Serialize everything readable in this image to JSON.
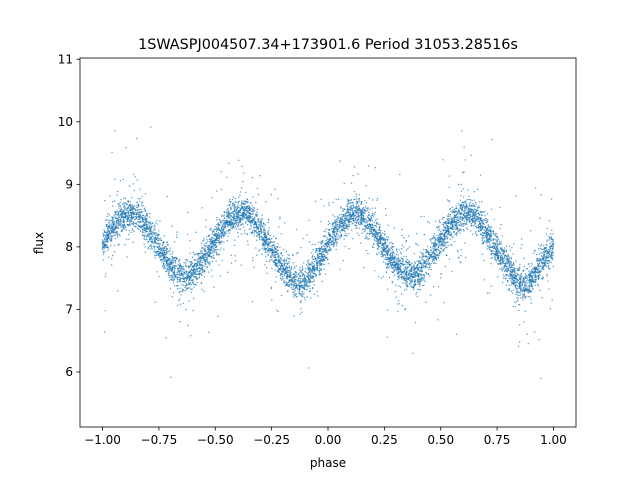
{
  "chart_data": {
    "type": "scatter",
    "title": "1SWASPJ004507.34+173901.6 Period 31053.28516s",
    "xlabel": "phase",
    "ylabel": "flux",
    "xlim": [
      -1.1,
      1.1
    ],
    "ylim": [
      5.12,
      11.02
    ],
    "xticks": [
      -1.0,
      -0.75,
      -0.5,
      -0.25,
      0.0,
      0.25,
      0.5,
      0.75,
      1.0
    ],
    "xtick_labels": [
      "−1.00",
      "−0.75",
      "−0.50",
      "−0.25",
      "0.00",
      "0.25",
      "0.50",
      "0.75",
      "1.00"
    ],
    "yticks": [
      6,
      7,
      8,
      9,
      10,
      11
    ],
    "ytick_labels": [
      "6",
      "7",
      "8",
      "9",
      "10",
      "11"
    ],
    "grid": false,
    "marker_color": "#1f77b4",
    "series": [
      {
        "x": [
          -1.0,
          -0.95,
          -0.9,
          -0.875,
          -0.85,
          -0.8,
          -0.75,
          -0.7,
          -0.65,
          -0.625,
          -0.6,
          -0.55,
          -0.5,
          -0.45,
          -0.4,
          -0.375,
          -0.35,
          -0.3,
          -0.25,
          -0.2,
          -0.15,
          -0.125,
          -0.1,
          -0.05,
          0.0,
          0.05,
          0.1,
          0.125,
          0.15,
          0.2,
          0.25,
          0.3,
          0.35,
          0.375,
          0.4,
          0.45,
          0.5,
          0.55,
          0.6,
          0.625,
          0.65,
          0.7,
          0.75,
          0.8,
          0.85,
          0.875,
          0.9,
          0.95,
          1.0
        ],
        "y": [
          8.05,
          8.35,
          8.52,
          8.55,
          8.52,
          8.3,
          8.0,
          7.72,
          7.55,
          7.52,
          7.56,
          7.8,
          8.1,
          8.38,
          8.52,
          8.55,
          8.5,
          8.25,
          7.95,
          7.65,
          7.42,
          7.38,
          7.45,
          7.75,
          8.05,
          8.35,
          8.52,
          8.55,
          8.52,
          8.28,
          7.98,
          7.72,
          7.55,
          7.52,
          7.56,
          7.82,
          8.12,
          8.38,
          8.52,
          8.55,
          8.5,
          8.25,
          7.95,
          7.65,
          7.42,
          7.38,
          7.45,
          7.75,
          8.05
        ]
      }
    ]
  }
}
